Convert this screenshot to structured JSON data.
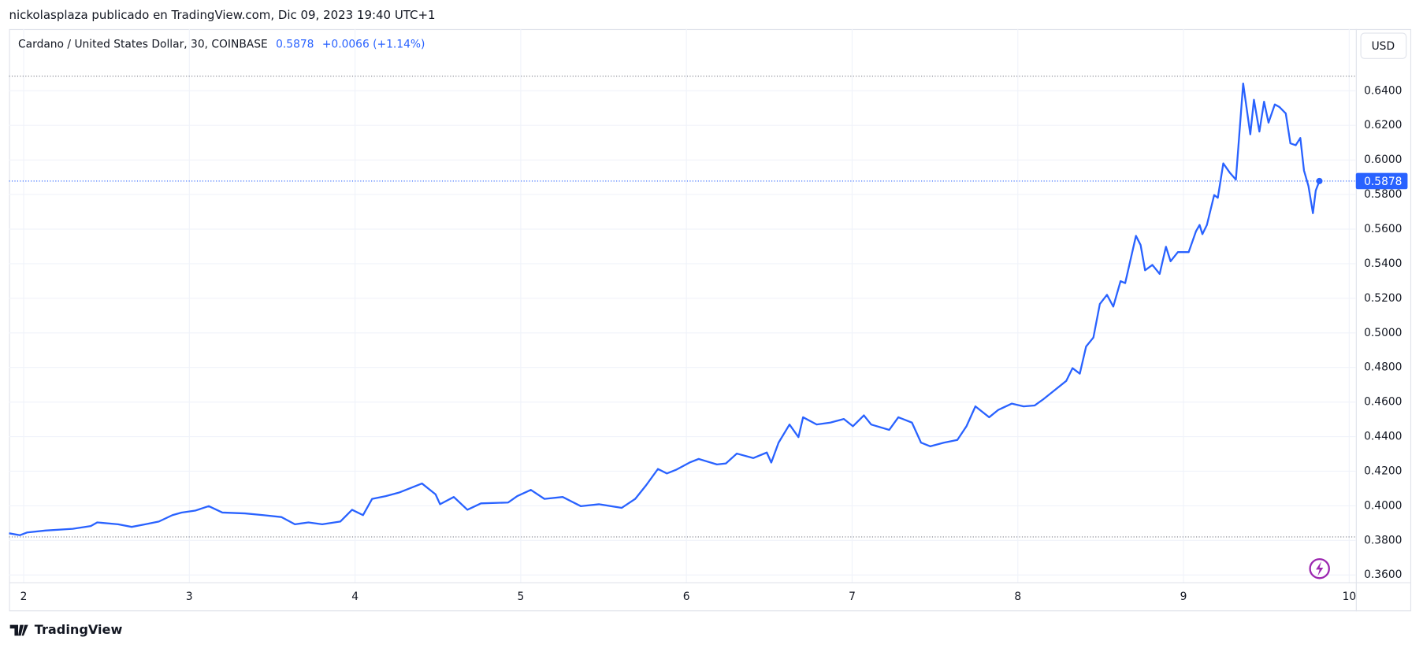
{
  "header": {
    "text": "nickolasplaza publicado en TradingView.com, Dic 09, 2023 19:40 UTC+1"
  },
  "chart_data": {
    "type": "line",
    "title": "Cardano / United States Dollar, 30, COINBASE",
    "last_price": 0.5878,
    "change": "+0.0066 (+1.14%)",
    "currency": "USD",
    "color": "#2962ff",
    "high": 0.6484,
    "low": 0.382,
    "grid": true,
    "xlim": [
      1.912,
      10.04
    ],
    "xticks": [
      2,
      3,
      4,
      5,
      6,
      7,
      8,
      9,
      10
    ],
    "ylim": [
      0.3558,
      0.6757
    ],
    "yticks": [
      {
        "value": 0.36,
        "label": "0.3600"
      },
      {
        "value": 0.38,
        "label": "0.3800"
      },
      {
        "value": 0.4,
        "label": "0.4000"
      },
      {
        "value": 0.42,
        "label": "0.4200"
      },
      {
        "value": 0.44,
        "label": "0.4400"
      },
      {
        "value": 0.46,
        "label": "0.4600"
      },
      {
        "value": 0.48,
        "label": "0.4800"
      },
      {
        "value": 0.5,
        "label": "0.5000"
      },
      {
        "value": 0.52,
        "label": "0.5200"
      },
      {
        "value": 0.54,
        "label": "0.5400"
      },
      {
        "value": 0.56,
        "label": "0.5600"
      },
      {
        "value": 0.58,
        "label": "0.5800"
      },
      {
        "value": 0.6,
        "label": "0.6000"
      },
      {
        "value": 0.62,
        "label": "0.6200"
      },
      {
        "value": 0.64,
        "label": "0.6400"
      }
    ],
    "x": [
      1.912,
      1.978,
      2.022,
      2.131,
      2.296,
      2.405,
      2.444,
      2.57,
      2.652,
      2.734,
      2.816,
      2.898,
      2.953,
      3.035,
      3.117,
      3.199,
      3.336,
      3.446,
      3.555,
      3.637,
      3.719,
      3.802,
      3.911,
      3.982,
      4.048,
      4.103,
      4.185,
      4.267,
      4.404,
      4.486,
      4.513,
      4.596,
      4.678,
      4.76,
      4.924,
      4.979,
      5.061,
      5.143,
      5.253,
      5.362,
      5.472,
      5.609,
      5.691,
      5.757,
      5.828,
      5.882,
      5.937,
      6.019,
      6.074,
      6.184,
      6.238,
      6.304,
      6.403,
      6.485,
      6.512,
      6.556,
      6.622,
      6.676,
      6.704,
      6.786,
      6.868,
      6.95,
      7.005,
      7.071,
      7.115,
      7.224,
      7.279,
      7.361,
      7.416,
      7.471,
      7.553,
      7.635,
      7.69,
      7.744,
      7.827,
      7.881,
      7.964,
      8.035,
      8.101,
      8.155,
      8.21,
      8.292,
      8.33,
      8.374,
      8.412,
      8.456,
      8.495,
      8.538,
      8.576,
      8.62,
      8.648,
      8.713,
      8.741,
      8.768,
      8.812,
      8.856,
      8.894,
      8.922,
      8.966,
      9.031,
      9.075,
      9.097,
      9.114,
      9.141,
      9.185,
      9.207,
      9.24,
      9.278,
      9.316,
      9.36,
      9.403,
      9.425,
      9.458,
      9.486,
      9.513,
      9.551,
      9.579,
      9.617,
      9.645,
      9.677,
      9.705,
      9.727,
      9.754,
      9.781,
      9.798,
      9.82
    ],
    "series": [
      {
        "name": "Cardano / United States Dollar",
        "color": "#2962ff",
        "values": [
          0.3841,
          0.383,
          0.3846,
          0.3857,
          0.3867,
          0.3883,
          0.3904,
          0.3893,
          0.3878,
          0.3893,
          0.3909,
          0.3946,
          0.3961,
          0.3972,
          0.3998,
          0.3961,
          0.3956,
          0.3946,
          0.3935,
          0.3893,
          0.3904,
          0.3893,
          0.3909,
          0.3977,
          0.3946,
          0.404,
          0.4056,
          0.4077,
          0.4129,
          0.4066,
          0.4009,
          0.4051,
          0.3977,
          0.4014,
          0.4019,
          0.4056,
          0.4092,
          0.404,
          0.4051,
          0.3998,
          0.4009,
          0.3988,
          0.404,
          0.4119,
          0.4213,
          0.4187,
          0.4208,
          0.425,
          0.4271,
          0.4239,
          0.4245,
          0.4302,
          0.4276,
          0.4308,
          0.425,
          0.4365,
          0.447,
          0.4397,
          0.4512,
          0.447,
          0.4481,
          0.4502,
          0.446,
          0.4523,
          0.447,
          0.4439,
          0.4512,
          0.4481,
          0.4365,
          0.4344,
          0.4365,
          0.4381,
          0.446,
          0.4575,
          0.4512,
          0.4554,
          0.4591,
          0.4575,
          0.458,
          0.4617,
          0.4659,
          0.4722,
          0.4796,
          0.4764,
          0.4921,
          0.4973,
          0.5167,
          0.522,
          0.5152,
          0.5299,
          0.5288,
          0.5561,
          0.5508,
          0.5362,
          0.5393,
          0.5341,
          0.5498,
          0.5414,
          0.5467,
          0.5467,
          0.5587,
          0.5624,
          0.5571,
          0.5624,
          0.5797,
          0.5781,
          0.598,
          0.5928,
          0.5886,
          0.6442,
          0.6148,
          0.6348,
          0.6164,
          0.6337,
          0.6216,
          0.6321,
          0.6306,
          0.6269,
          0.6096,
          0.6085,
          0.6127,
          0.5939,
          0.5849,
          0.5692,
          0.5823,
          0.5878
        ]
      }
    ]
  },
  "footer": {
    "brand": "TradingView"
  }
}
